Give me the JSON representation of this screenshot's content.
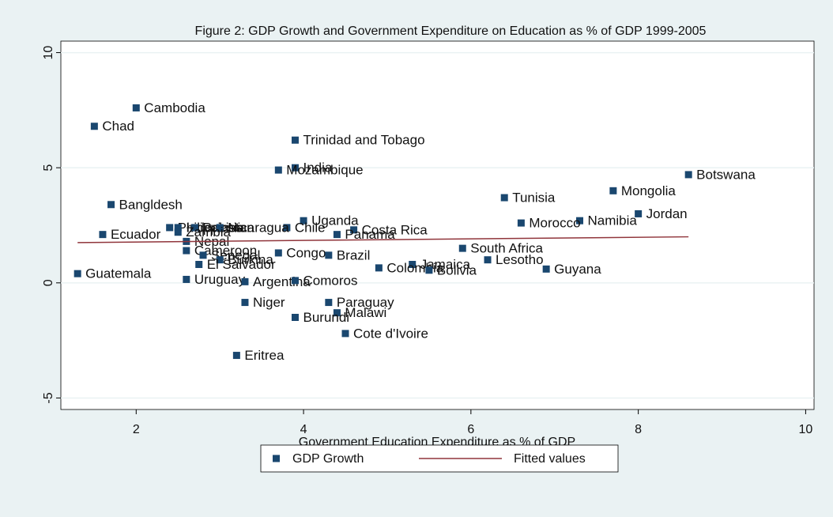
{
  "chart_data": {
    "type": "scatter",
    "title": "Figure 2:  GDP Growth and Government Expenditure on Education as % of GDP 1999-2005",
    "x_label": "Government Education Expenditure as % of GDP",
    "xlim": [
      1.1,
      10.1
    ],
    "ylim": [
      -5.5,
      10.5
    ],
    "xticks": [
      2,
      4,
      6,
      8,
      10
    ],
    "yticks": [
      -5,
      0,
      5,
      10
    ],
    "grid": true,
    "series": [
      {
        "name": "GDP Growth",
        "color": "#1a476f",
        "type": "scatter",
        "point_labels": [
          "Cambodia",
          "Chad",
          "Trinidad and Tobago",
          "India",
          "Mozambique",
          "Botswana",
          "Bangldesh",
          "Tunisia",
          "Mongolia",
          "Jordan",
          "Namibia",
          "Morocco",
          "Uganda",
          "Chile",
          "Costa Rica",
          "Panama",
          "Philippines",
          "Indonesia",
          "Pakistan",
          "Nicaragua",
          "Zambia",
          "Ecuador",
          "Nepal",
          "Cameroon",
          "Senegal",
          "Burkina",
          "El Salvador",
          "Congo",
          "Brazil",
          "South Africa",
          "Lesotho",
          "Jamaica",
          "Colombia",
          "Bolivia",
          "Guyana",
          "Guatemala",
          "Uruguay",
          "Argentina",
          "Comoros",
          "Niger",
          "Paraguay",
          "Malawi",
          "Burundi",
          "Cote d'Ivoire",
          "Eritrea"
        ],
        "x": [
          2.0,
          1.5,
          3.9,
          3.9,
          3.7,
          8.6,
          1.7,
          6.4,
          7.7,
          8.0,
          7.3,
          6.6,
          4.0,
          3.8,
          4.6,
          4.4,
          2.4,
          2.5,
          2.7,
          3.0,
          2.5,
          1.6,
          2.6,
          2.6,
          2.8,
          3.0,
          2.75,
          3.7,
          4.3,
          5.9,
          6.2,
          5.3,
          4.9,
          5.5,
          6.9,
          1.3,
          2.6,
          3.3,
          3.9,
          3.3,
          4.3,
          4.4,
          3.9,
          4.5,
          3.2
        ],
        "values": [
          7.6,
          6.8,
          6.2,
          5.0,
          4.9,
          4.7,
          3.4,
          3.7,
          4.0,
          3.0,
          2.7,
          2.6,
          2.7,
          2.4,
          2.3,
          2.1,
          2.4,
          2.4,
          2.4,
          2.4,
          2.2,
          2.1,
          1.8,
          1.4,
          1.2,
          1.0,
          0.8,
          1.3,
          1.2,
          1.5,
          1.0,
          0.8,
          0.65,
          0.55,
          0.6,
          0.4,
          0.15,
          0.05,
          0.1,
          -0.85,
          -0.85,
          -1.3,
          -1.5,
          -2.2,
          -3.15
        ]
      },
      {
        "name": "Fitted values",
        "color": "#90353b",
        "type": "line",
        "x": [
          1.3,
          8.6
        ],
        "values": [
          1.75,
          2.0
        ]
      }
    ]
  }
}
